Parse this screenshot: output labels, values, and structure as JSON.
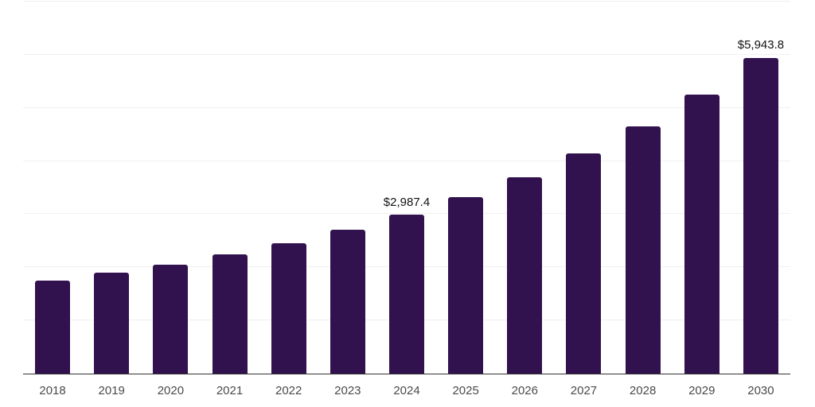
{
  "chart_data": {
    "type": "bar",
    "title": "",
    "xlabel": "",
    "ylabel": "",
    "categories": [
      "2018",
      "2019",
      "2020",
      "2021",
      "2022",
      "2023",
      "2024",
      "2025",
      "2026",
      "2027",
      "2028",
      "2029",
      "2030"
    ],
    "values": [
      1750,
      1905,
      2050,
      2245,
      2455,
      2705,
      2987.4,
      3320,
      3695,
      4145,
      4650,
      5250,
      5943.8
    ],
    "data_labels": [
      {
        "category": "2024",
        "text": "$2,987.4"
      },
      {
        "category": "2030",
        "text": "$5,943.8"
      }
    ],
    "ylim": [
      0,
      7000
    ],
    "grid_step": 1000,
    "gridlines": "horizontal",
    "legend": "none",
    "y_axis_labels_visible": false
  },
  "colors": {
    "bar": "#32124E",
    "gridline": "#f0f0f0",
    "axis": "#333333",
    "tick_label": "#4a4a4a",
    "data_label": "#121212",
    "background": "#ffffff"
  }
}
